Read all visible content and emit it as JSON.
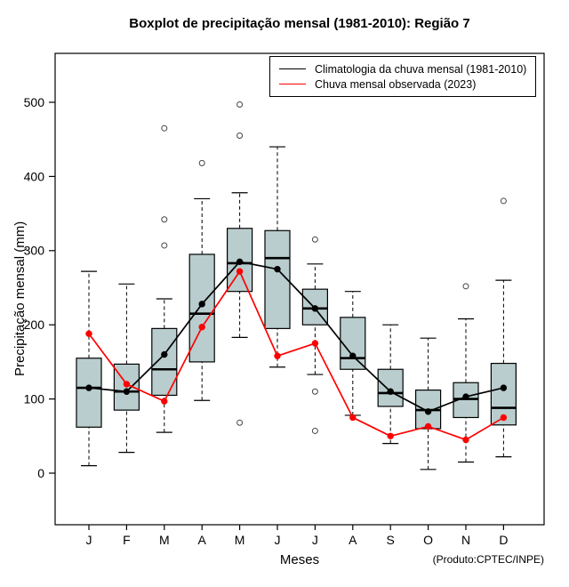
{
  "chart_data": {
    "type": "boxplot",
    "title": "Boxplot de precipitação mensal (1981-2010): Região 7",
    "xlabel": "Meses",
    "ylabel": "Precipitação mensal (mm)",
    "source_note": "(Produto:CPTEC/INPE)",
    "categories": [
      "J",
      "F",
      "M",
      "A",
      "M",
      "J",
      "J",
      "A",
      "S",
      "O",
      "N",
      "D"
    ],
    "y_ticks": [
      0,
      100,
      200,
      300,
      400,
      500
    ],
    "ylim": [
      -70,
      565
    ],
    "grid": false,
    "legend_position": "top-right-inside",
    "colors": {
      "box_fill": "#b9cdce",
      "box_stroke": "#000000",
      "outlier": "#444444",
      "climatology": "#000000",
      "observed": "#ff0000"
    },
    "boxes": [
      {
        "whisker_low": 10,
        "q1": 62,
        "median": 115,
        "q3": 155,
        "whisker_high": 272,
        "outliers": []
      },
      {
        "whisker_low": 28,
        "q1": 85,
        "median": 110,
        "q3": 147,
        "whisker_high": 255,
        "outliers": []
      },
      {
        "whisker_low": 55,
        "q1": 105,
        "median": 140,
        "q3": 195,
        "whisker_high": 235,
        "outliers": [
          307,
          342,
          465
        ]
      },
      {
        "whisker_low": 98,
        "q1": 150,
        "median": 215,
        "q3": 295,
        "whisker_high": 370,
        "outliers": [
          418
        ]
      },
      {
        "whisker_low": 183,
        "q1": 245,
        "median": 283,
        "q3": 330,
        "whisker_high": 378,
        "outliers": [
          68,
          455,
          497
        ]
      },
      {
        "whisker_low": 143,
        "q1": 195,
        "median": 290,
        "q3": 327,
        "whisker_high": 440,
        "outliers": []
      },
      {
        "whisker_low": 133,
        "q1": 200,
        "median": 222,
        "q3": 248,
        "whisker_high": 282,
        "outliers": [
          57,
          110,
          315
        ]
      },
      {
        "whisker_low": 78,
        "q1": 140,
        "median": 155,
        "q3": 210,
        "whisker_high": 245,
        "outliers": []
      },
      {
        "whisker_low": 40,
        "q1": 90,
        "median": 108,
        "q3": 140,
        "whisker_high": 200,
        "outliers": []
      },
      {
        "whisker_low": 5,
        "q1": 60,
        "median": 85,
        "q3": 112,
        "whisker_high": 182,
        "outliers": []
      },
      {
        "whisker_low": 15,
        "q1": 75,
        "median": 100,
        "q3": 122,
        "whisker_high": 208,
        "outliers": [
          252
        ]
      },
      {
        "whisker_low": 22,
        "q1": 65,
        "median": 88,
        "q3": 148,
        "whisker_high": 260,
        "outliers": [
          367
        ]
      }
    ],
    "series": [
      {
        "name": "Climatologia da chuva mensal (1981-2010)",
        "color": "#000000",
        "values": [
          115,
          110,
          160,
          228,
          285,
          275,
          222,
          158,
          110,
          83,
          103,
          115
        ]
      },
      {
        "name": "Chuva mensal observada (2023)",
        "color": "#ff0000",
        "values": [
          188,
          120,
          97,
          197,
          272,
          158,
          175,
          75,
          50,
          63,
          45,
          75
        ]
      }
    ]
  }
}
